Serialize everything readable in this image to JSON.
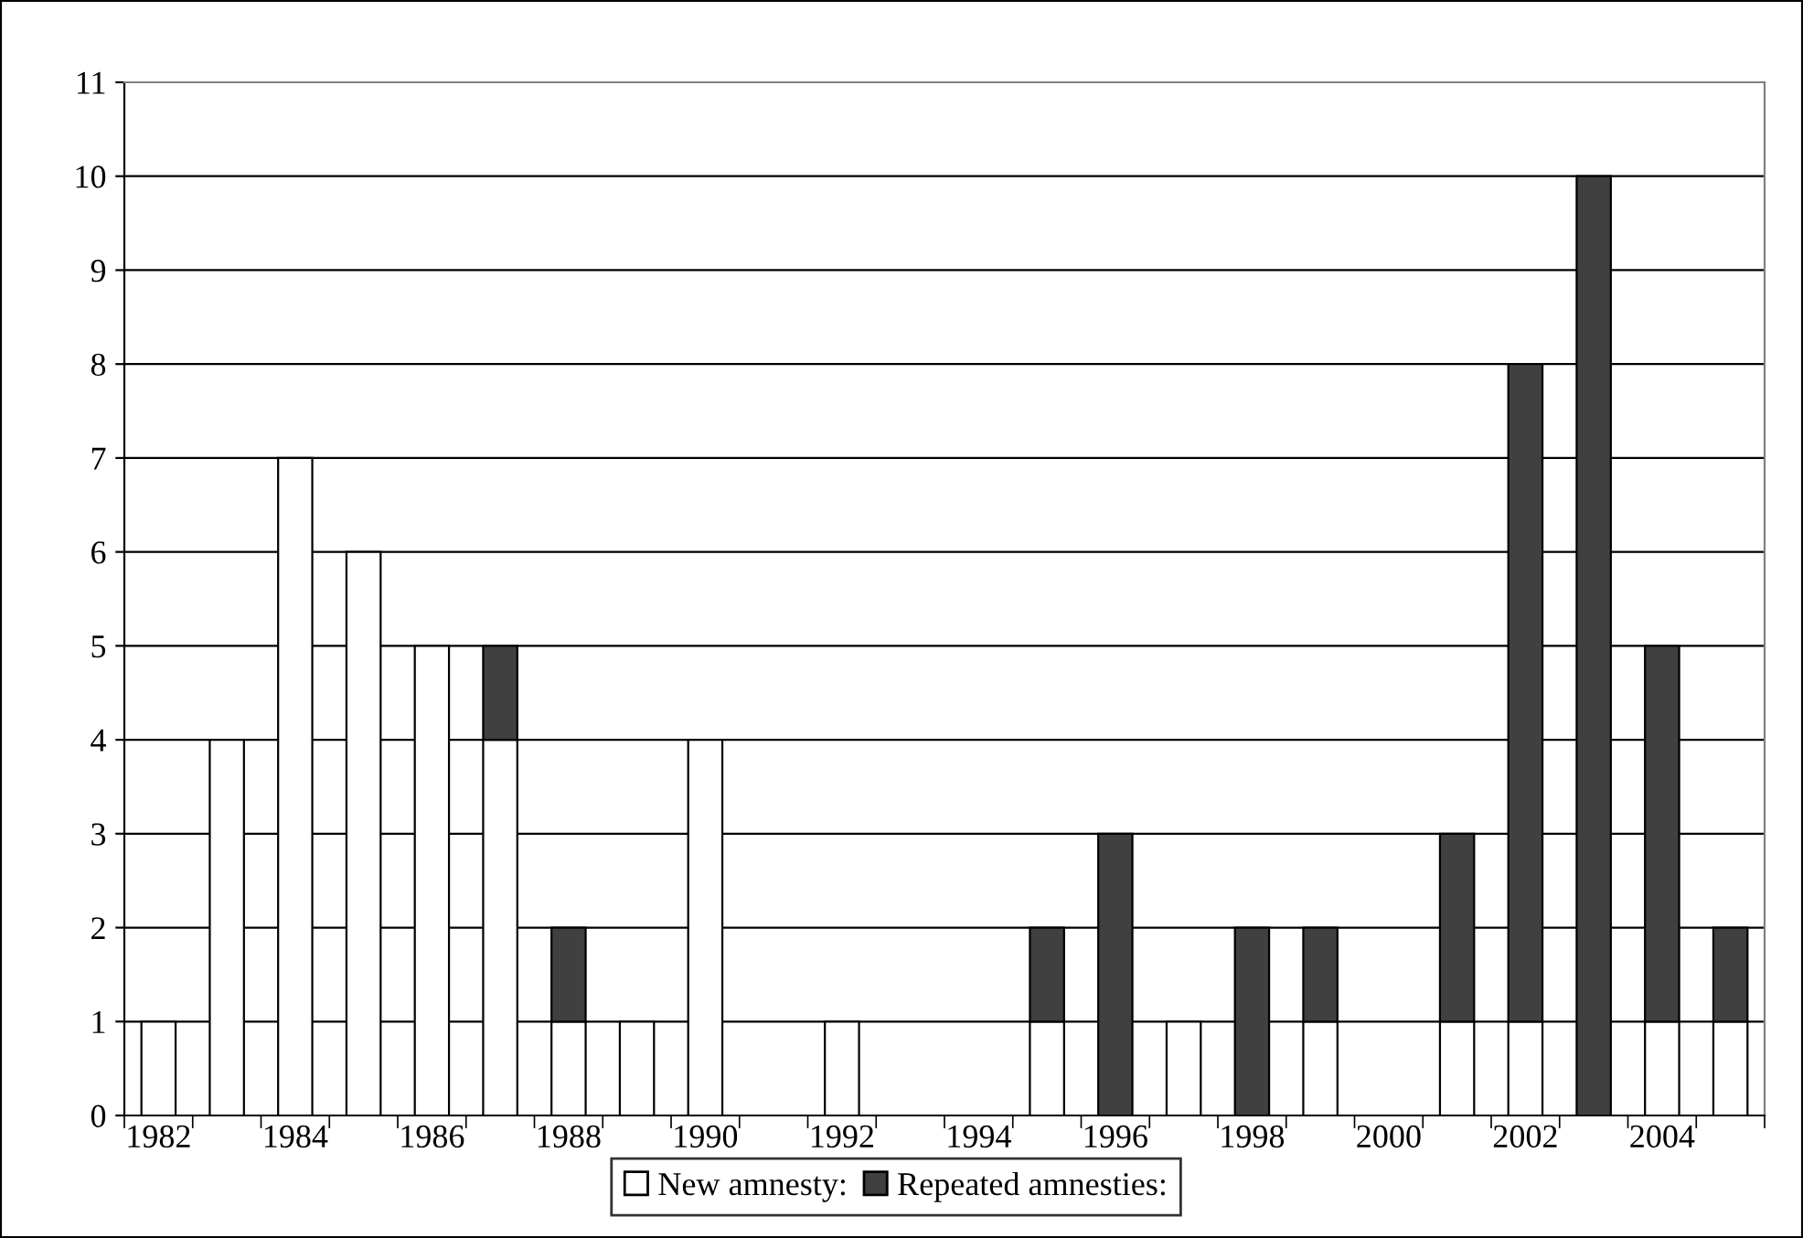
{
  "chart_data": {
    "type": "bar",
    "stacked": true,
    "categories": [
      "1982",
      null,
      "1984",
      null,
      "1986",
      null,
      "1988",
      null,
      "1990",
      null,
      "1992",
      null,
      "1994",
      null,
      "1996",
      null,
      "1998",
      null,
      "2000",
      null,
      "2002",
      null,
      "2004",
      null
    ],
    "series": [
      {
        "name": "New amnesty:",
        "color": "#ffffff",
        "values": [
          1,
          4,
          7,
          6,
          5,
          4,
          1,
          1,
          4,
          null,
          1,
          null,
          null,
          1,
          null,
          1,
          null,
          1,
          null,
          1,
          1,
          null,
          1,
          1
        ]
      },
      {
        "name": "Repeated amnesties:",
        "color": "#404040",
        "values": [
          null,
          null,
          null,
          null,
          null,
          1,
          1,
          null,
          null,
          null,
          null,
          null,
          null,
          1,
          3,
          null,
          2,
          1,
          null,
          2,
          7,
          10,
          4,
          1
        ]
      }
    ],
    "ylim": [
      0,
      11
    ],
    "yticks": [
      0,
      1,
      2,
      3,
      4,
      5,
      6,
      7,
      8,
      9,
      10,
      11
    ],
    "grid": "y",
    "legend": "bottom"
  }
}
